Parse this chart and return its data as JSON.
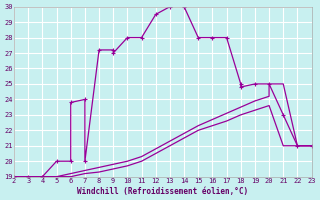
{
  "xlabel": "Windchill (Refroidissement éolien,°C)",
  "ylabel": "",
  "bg_color": "#c8f0f0",
  "grid_color": "#ffffff",
  "line_color": "#990099",
  "xlim": [
    2,
    23
  ],
  "ylim": [
    19,
    30
  ],
  "xticks": [
    2,
    3,
    4,
    5,
    6,
    7,
    8,
    9,
    10,
    11,
    12,
    13,
    14,
    15,
    16,
    17,
    18,
    19,
    20,
    21,
    22,
    23
  ],
  "yticks": [
    19,
    20,
    21,
    22,
    23,
    24,
    25,
    26,
    27,
    28,
    29,
    30
  ],
  "curve1_x": [
    2,
    3,
    4,
    5,
    6,
    6,
    7,
    7,
    8,
    9,
    9,
    10,
    11,
    12,
    13,
    13,
    14,
    14,
    15,
    16,
    17,
    18,
    18,
    19,
    20,
    21,
    22,
    23
  ],
  "curve1_y": [
    19,
    19,
    19,
    20,
    20,
    23.8,
    24,
    20,
    27.2,
    27.2,
    27,
    28,
    28,
    29.5,
    30,
    30.5,
    30.5,
    30,
    28,
    28,
    28,
    25,
    24.8,
    25,
    25,
    23,
    21,
    21
  ],
  "curve2_x": [
    2,
    3,
    4,
    5,
    6,
    7,
    8,
    9,
    10,
    11,
    12,
    13,
    14,
    15,
    16,
    17,
    18,
    19,
    20,
    20,
    21,
    22,
    23
  ],
  "curve2_y": [
    19,
    19,
    19,
    19,
    19.2,
    19.4,
    19.6,
    19.8,
    20,
    20.3,
    20.8,
    21.3,
    21.8,
    22.3,
    22.7,
    23.1,
    23.5,
    23.9,
    24.2,
    25,
    25,
    21,
    21
  ],
  "curve3_x": [
    2,
    3,
    4,
    5,
    6,
    7,
    8,
    9,
    10,
    11,
    12,
    13,
    14,
    15,
    16,
    17,
    18,
    19,
    20,
    21,
    22,
    23
  ],
  "curve3_y": [
    19,
    19,
    19,
    19,
    19,
    19.2,
    19.3,
    19.5,
    19.7,
    20.0,
    20.5,
    21.0,
    21.5,
    22.0,
    22.3,
    22.6,
    23.0,
    23.3,
    23.6,
    21,
    21,
    21
  ]
}
